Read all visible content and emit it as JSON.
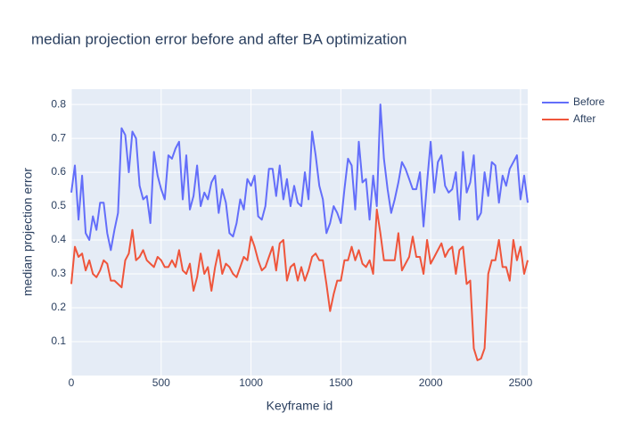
{
  "chart_data": {
    "type": "line",
    "title": "median projection error before and after BA optimization",
    "x_label": "Keyframe id",
    "y_label": "median projection error",
    "x": [
      0,
      20,
      40,
      60,
      80,
      100,
      120,
      140,
      160,
      180,
      200,
      220,
      240,
      260,
      280,
      300,
      320,
      340,
      360,
      380,
      400,
      420,
      440,
      460,
      480,
      500,
      520,
      540,
      560,
      580,
      600,
      620,
      640,
      660,
      680,
      700,
      720,
      740,
      760,
      780,
      800,
      820,
      840,
      860,
      880,
      900,
      920,
      940,
      960,
      980,
      1000,
      1020,
      1040,
      1060,
      1080,
      1100,
      1120,
      1140,
      1160,
      1180,
      1200,
      1220,
      1240,
      1260,
      1280,
      1300,
      1320,
      1340,
      1360,
      1380,
      1400,
      1420,
      1440,
      1460,
      1480,
      1500,
      1520,
      1540,
      1560,
      1580,
      1600,
      1620,
      1640,
      1660,
      1680,
      1700,
      1720,
      1740,
      1760,
      1780,
      1800,
      1820,
      1840,
      1860,
      1880,
      1900,
      1920,
      1940,
      1960,
      1980,
      2000,
      2020,
      2040,
      2060,
      2080,
      2100,
      2120,
      2140,
      2160,
      2180,
      2200,
      2220,
      2240,
      2260,
      2280,
      2300,
      2320,
      2340,
      2360,
      2380,
      2400,
      2420,
      2440,
      2460,
      2480,
      2500,
      2520,
      2540
    ],
    "series": [
      {
        "name": "Before",
        "color": "#636efa",
        "values": [
          0.54,
          0.62,
          0.46,
          0.59,
          0.42,
          0.4,
          0.47,
          0.43,
          0.51,
          0.51,
          0.42,
          0.37,
          0.43,
          0.48,
          0.73,
          0.71,
          0.6,
          0.72,
          0.7,
          0.56,
          0.52,
          0.53,
          0.45,
          0.66,
          0.59,
          0.55,
          0.52,
          0.65,
          0.64,
          0.67,
          0.69,
          0.52,
          0.65,
          0.49,
          0.53,
          0.62,
          0.5,
          0.54,
          0.52,
          0.57,
          0.59,
          0.48,
          0.55,
          0.51,
          0.42,
          0.41,
          0.45,
          0.52,
          0.49,
          0.58,
          0.56,
          0.59,
          0.47,
          0.46,
          0.5,
          0.61,
          0.61,
          0.53,
          0.62,
          0.52,
          0.58,
          0.5,
          0.56,
          0.51,
          0.5,
          0.6,
          0.52,
          0.72,
          0.65,
          0.56,
          0.52,
          0.42,
          0.45,
          0.5,
          0.48,
          0.45,
          0.55,
          0.64,
          0.62,
          0.49,
          0.69,
          0.57,
          0.58,
          0.46,
          0.59,
          0.5,
          0.8,
          0.64,
          0.55,
          0.48,
          0.52,
          0.57,
          0.63,
          0.61,
          0.58,
          0.55,
          0.55,
          0.6,
          0.44,
          0.57,
          0.69,
          0.54,
          0.63,
          0.65,
          0.56,
          0.54,
          0.55,
          0.6,
          0.46,
          0.66,
          0.54,
          0.57,
          0.65,
          0.46,
          0.48,
          0.6,
          0.53,
          0.63,
          0.62,
          0.51,
          0.59,
          0.56,
          0.61,
          0.63,
          0.65,
          0.52,
          0.59,
          0.51
        ]
      },
      {
        "name": "After",
        "color": "#ef553b",
        "values": [
          0.27,
          0.38,
          0.35,
          0.36,
          0.31,
          0.34,
          0.3,
          0.29,
          0.31,
          0.34,
          0.33,
          0.28,
          0.28,
          0.27,
          0.26,
          0.34,
          0.36,
          0.43,
          0.34,
          0.35,
          0.37,
          0.34,
          0.33,
          0.32,
          0.35,
          0.34,
          0.32,
          0.32,
          0.34,
          0.32,
          0.37,
          0.31,
          0.3,
          0.33,
          0.25,
          0.29,
          0.36,
          0.3,
          0.32,
          0.25,
          0.32,
          0.37,
          0.3,
          0.33,
          0.32,
          0.3,
          0.29,
          0.32,
          0.35,
          0.34,
          0.41,
          0.38,
          0.34,
          0.31,
          0.32,
          0.35,
          0.38,
          0.31,
          0.39,
          0.4,
          0.28,
          0.32,
          0.33,
          0.28,
          0.32,
          0.28,
          0.31,
          0.35,
          0.36,
          0.34,
          0.34,
          0.27,
          0.19,
          0.24,
          0.28,
          0.28,
          0.34,
          0.34,
          0.38,
          0.34,
          0.37,
          0.33,
          0.32,
          0.34,
          0.3,
          0.49,
          0.42,
          0.34,
          0.34,
          0.34,
          0.34,
          0.42,
          0.31,
          0.33,
          0.35,
          0.41,
          0.35,
          0.35,
          0.3,
          0.4,
          0.33,
          0.35,
          0.37,
          0.39,
          0.35,
          0.37,
          0.38,
          0.3,
          0.37,
          0.38,
          0.27,
          0.28,
          0.08,
          0.045,
          0.05,
          0.08,
          0.3,
          0.34,
          0.34,
          0.4,
          0.32,
          0.32,
          0.28,
          0.4,
          0.34,
          0.38,
          0.3,
          0.34
        ]
      }
    ],
    "xlim": [
      0,
      2540
    ],
    "xticks": [
      0,
      500,
      1000,
      1500,
      2000,
      2500
    ],
    "ylim": [
      0,
      0.845
    ],
    "yticks": [
      0.1,
      0.2,
      0.3,
      0.4,
      0.5,
      0.6,
      0.7,
      0.8
    ],
    "grid": true,
    "legend": "right"
  }
}
